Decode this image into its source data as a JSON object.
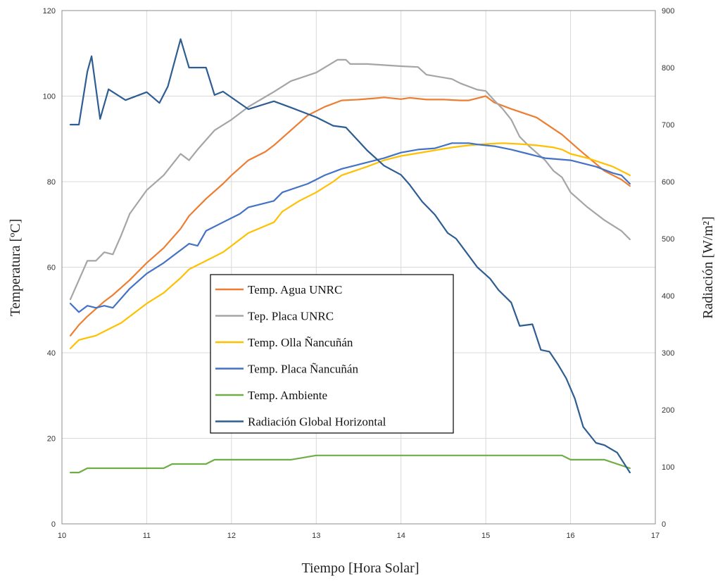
{
  "chart_data": {
    "type": "line",
    "xlabel": "Tiempo [Hora Solar]",
    "ylabel_left": "Temperatura [ºC]",
    "ylabel_right": "Radiación [W/m²]",
    "xlim": [
      10,
      17
    ],
    "ylim_left": [
      0,
      120
    ],
    "ylim_right": [
      0,
      900
    ],
    "x_ticks": [
      "10",
      "11",
      "12",
      "13",
      "14",
      "15",
      "16",
      "17"
    ],
    "y_left_ticks": [
      "0",
      "20",
      "40",
      "60",
      "80",
      "100",
      "120"
    ],
    "y_right_ticks": [
      "0",
      "100",
      "200",
      "300",
      "400",
      "500",
      "600",
      "700",
      "800",
      "900"
    ],
    "grid": true,
    "legend_position": "center-left",
    "series": [
      {
        "name": "Temp. Agua UNRC",
        "axis": "left",
        "color": "#ED7D31",
        "points": [
          [
            10.1,
            44
          ],
          [
            10.2,
            46.5
          ],
          [
            10.3,
            48.5
          ],
          [
            10.5,
            52
          ],
          [
            10.6,
            53.5
          ],
          [
            10.8,
            57
          ],
          [
            11,
            61
          ],
          [
            11.2,
            64.5
          ],
          [
            11.4,
            69
          ],
          [
            11.5,
            72
          ],
          [
            11.7,
            76
          ],
          [
            11.9,
            79.5
          ],
          [
            12,
            81.5
          ],
          [
            12.2,
            85
          ],
          [
            12.4,
            87
          ],
          [
            12.5,
            88.5
          ],
          [
            12.7,
            92
          ],
          [
            12.9,
            95.5
          ],
          [
            13.1,
            97.5
          ],
          [
            13.3,
            99
          ],
          [
            13.5,
            99.2
          ],
          [
            13.7,
            99.5
          ],
          [
            13.8,
            99.7
          ],
          [
            14,
            99.3
          ],
          [
            14.1,
            99.6
          ],
          [
            14.3,
            99.2
          ],
          [
            14.5,
            99.2
          ],
          [
            14.7,
            99
          ],
          [
            14.8,
            99
          ],
          [
            15,
            100
          ],
          [
            15.1,
            98.5
          ],
          [
            15.3,
            97
          ],
          [
            15.6,
            95
          ],
          [
            15.9,
            91
          ],
          [
            16.1,
            87.5
          ],
          [
            16.4,
            82.5
          ],
          [
            16.6,
            80.5
          ],
          [
            16.7,
            79
          ]
        ]
      },
      {
        "name": "Tep. Placa UNRC",
        "axis": "left",
        "color": "#A5A5A5",
        "points": [
          [
            10.1,
            52.5
          ],
          [
            10.2,
            57
          ],
          [
            10.3,
            61.5
          ],
          [
            10.4,
            61.5
          ],
          [
            10.5,
            63.5
          ],
          [
            10.6,
            63
          ],
          [
            10.7,
            67.5
          ],
          [
            10.8,
            72.5
          ],
          [
            11,
            78
          ],
          [
            11.2,
            81.5
          ],
          [
            11.4,
            86.5
          ],
          [
            11.5,
            85
          ],
          [
            11.6,
            87.5
          ],
          [
            11.8,
            92
          ],
          [
            12,
            94.5
          ],
          [
            12.2,
            97.5
          ],
          [
            12.5,
            101
          ],
          [
            12.7,
            103.5
          ],
          [
            13,
            105.5
          ],
          [
            13.25,
            108.5
          ],
          [
            13.35,
            108.5
          ],
          [
            13.4,
            107.5
          ],
          [
            13.6,
            107.5
          ],
          [
            14,
            107
          ],
          [
            14.2,
            106.8
          ],
          [
            14.3,
            105
          ],
          [
            14.6,
            104
          ],
          [
            14.7,
            103
          ],
          [
            14.9,
            101.5
          ],
          [
            15,
            101.2
          ],
          [
            15.1,
            99
          ],
          [
            15.2,
            97
          ],
          [
            15.3,
            94.5
          ],
          [
            15.4,
            90.5
          ],
          [
            15.5,
            88.5
          ],
          [
            15.7,
            85
          ],
          [
            15.8,
            82.5
          ],
          [
            15.9,
            81
          ],
          [
            16,
            77.5
          ],
          [
            16.2,
            74
          ],
          [
            16.4,
            71
          ],
          [
            16.6,
            68.5
          ],
          [
            16.7,
            66.5
          ]
        ]
      },
      {
        "name": "Temp. Olla Ñancuñán",
        "axis": "left",
        "color": "#FFC000",
        "points": [
          [
            10.1,
            41
          ],
          [
            10.2,
            43
          ],
          [
            10.4,
            44
          ],
          [
            10.5,
            45
          ],
          [
            10.7,
            47
          ],
          [
            10.8,
            48.5
          ],
          [
            11,
            51.5
          ],
          [
            11.2,
            54
          ],
          [
            11.4,
            57.5
          ],
          [
            11.5,
            59.5
          ],
          [
            11.7,
            61.5
          ],
          [
            11.9,
            63.5
          ],
          [
            12,
            65
          ],
          [
            12.2,
            68
          ],
          [
            12.5,
            70.5
          ],
          [
            12.6,
            73
          ],
          [
            12.8,
            75.5
          ],
          [
            13,
            77.5
          ],
          [
            13.2,
            80
          ],
          [
            13.3,
            81.5
          ],
          [
            13.6,
            83.5
          ],
          [
            13.8,
            85
          ],
          [
            14,
            86
          ],
          [
            14.3,
            87
          ],
          [
            14.6,
            88
          ],
          [
            14.8,
            88.5
          ],
          [
            15,
            88.8
          ],
          [
            15.2,
            89
          ],
          [
            15.4,
            88.8
          ],
          [
            15.6,
            88.5
          ],
          [
            15.8,
            88
          ],
          [
            15.9,
            87.5
          ],
          [
            16,
            86.5
          ],
          [
            16.2,
            85.5
          ],
          [
            16.5,
            83.5
          ],
          [
            16.7,
            81.5
          ]
        ]
      },
      {
        "name": "Temp. Placa Ñancuñán",
        "axis": "left",
        "color": "#4472C4",
        "points": [
          [
            10.1,
            51.5
          ],
          [
            10.2,
            49.5
          ],
          [
            10.3,
            51
          ],
          [
            10.4,
            50.5
          ],
          [
            10.5,
            51
          ],
          [
            10.6,
            50.5
          ],
          [
            10.8,
            55
          ],
          [
            11,
            58.5
          ],
          [
            11.2,
            61
          ],
          [
            11.4,
            64
          ],
          [
            11.5,
            65.5
          ],
          [
            11.6,
            65
          ],
          [
            11.7,
            68.5
          ],
          [
            11.9,
            70.5
          ],
          [
            12.1,
            72.5
          ],
          [
            12.2,
            74
          ],
          [
            12.5,
            75.5
          ],
          [
            12.6,
            77.5
          ],
          [
            12.9,
            79.5
          ],
          [
            13,
            80.5
          ],
          [
            13.1,
            81.5
          ],
          [
            13.3,
            83
          ],
          [
            13.5,
            84
          ],
          [
            13.8,
            85.5
          ],
          [
            14,
            86.8
          ],
          [
            14.2,
            87.5
          ],
          [
            14.4,
            87.8
          ],
          [
            14.6,
            89
          ],
          [
            14.8,
            89
          ],
          [
            14.9,
            88.7
          ],
          [
            15.1,
            88.3
          ],
          [
            15.3,
            87.5
          ],
          [
            15.5,
            86.5
          ],
          [
            15.7,
            85.5
          ],
          [
            16,
            85
          ],
          [
            16.3,
            83.5
          ],
          [
            16.5,
            82
          ],
          [
            16.6,
            81.5
          ],
          [
            16.7,
            79.5
          ]
        ]
      },
      {
        "name": "Temp. Ambiente",
        "axis": "left",
        "color": "#70AD47",
        "points": [
          [
            10.1,
            12
          ],
          [
            10.2,
            12
          ],
          [
            10.3,
            13
          ],
          [
            11.2,
            13
          ],
          [
            11.3,
            14
          ],
          [
            11.7,
            14
          ],
          [
            11.8,
            15
          ],
          [
            12.7,
            15
          ],
          [
            13,
            16
          ],
          [
            15.9,
            16
          ],
          [
            16,
            15
          ],
          [
            16.4,
            15
          ],
          [
            16.7,
            13
          ]
        ]
      },
      {
        "name": "Radiación Global Horizontal",
        "axis": "right",
        "color": "#2E5D91",
        "points": [
          [
            10.1,
            700
          ],
          [
            10.2,
            700
          ],
          [
            10.3,
            793
          ],
          [
            10.35,
            820
          ],
          [
            10.45,
            710
          ],
          [
            10.55,
            762
          ],
          [
            10.75,
            743
          ],
          [
            11,
            757
          ],
          [
            11.15,
            738
          ],
          [
            11.25,
            767
          ],
          [
            11.4,
            850
          ],
          [
            11.5,
            800
          ],
          [
            11.7,
            800
          ],
          [
            11.8,
            752
          ],
          [
            11.9,
            758
          ],
          [
            12.2,
            727
          ],
          [
            12.5,
            741
          ],
          [
            12.7,
            730
          ],
          [
            13,
            713
          ],
          [
            13.2,
            698
          ],
          [
            13.35,
            695
          ],
          [
            13.6,
            655
          ],
          [
            13.8,
            628
          ],
          [
            14,
            612
          ],
          [
            14.1,
            595
          ],
          [
            14.25,
            565
          ],
          [
            14.4,
            542
          ],
          [
            14.55,
            510
          ],
          [
            14.65,
            500
          ],
          [
            14.8,
            470
          ],
          [
            14.9,
            450
          ],
          [
            15.05,
            430
          ],
          [
            15.15,
            410
          ],
          [
            15.3,
            388
          ],
          [
            15.4,
            347
          ],
          [
            15.55,
            350
          ],
          [
            15.65,
            305
          ],
          [
            15.75,
            302
          ],
          [
            15.85,
            280
          ],
          [
            15.95,
            255
          ],
          [
            16.05,
            220
          ],
          [
            16.15,
            170
          ],
          [
            16.3,
            142
          ],
          [
            16.4,
            138
          ],
          [
            16.55,
            125
          ],
          [
            16.7,
            90
          ]
        ]
      }
    ]
  }
}
